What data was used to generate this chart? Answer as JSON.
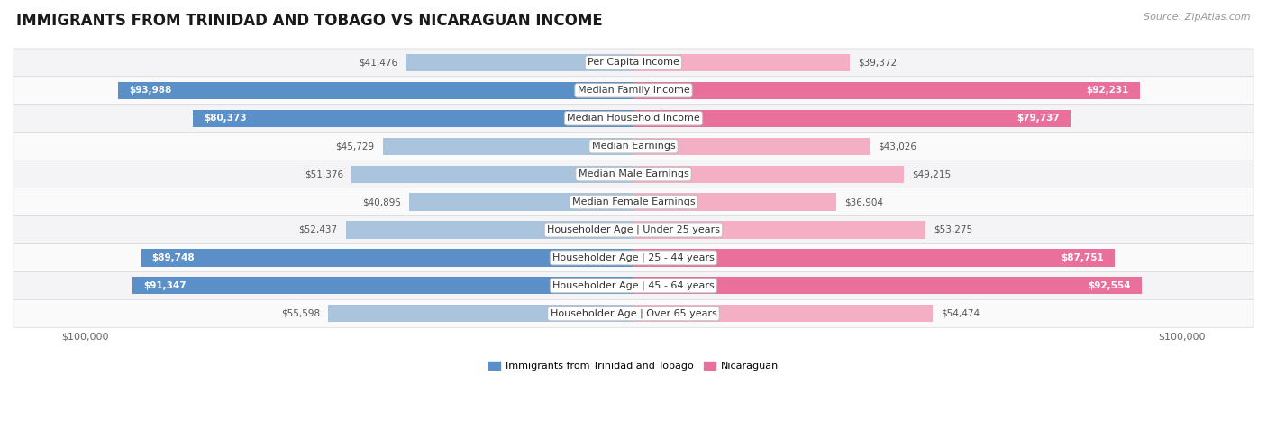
{
  "title": "IMMIGRANTS FROM TRINIDAD AND TOBAGO VS NICARAGUAN INCOME",
  "source": "Source: ZipAtlas.com",
  "categories": [
    "Per Capita Income",
    "Median Family Income",
    "Median Household Income",
    "Median Earnings",
    "Median Male Earnings",
    "Median Female Earnings",
    "Householder Age | Under 25 years",
    "Householder Age | 25 - 44 years",
    "Householder Age | 45 - 64 years",
    "Householder Age | Over 65 years"
  ],
  "trinidad_values": [
    41476,
    93988,
    80373,
    45729,
    51376,
    40895,
    52437,
    89748,
    91347,
    55598
  ],
  "nicaraguan_values": [
    39372,
    92231,
    79737,
    43026,
    49215,
    36904,
    53275,
    87751,
    92554,
    54474
  ],
  "max_value": 100000,
  "trinidad_color": "#aac4de",
  "nicaraguan_color": "#f4afc5",
  "trinidad_dark_color": "#5b8fc8",
  "nicaraguan_dark_color": "#e8709a",
  "label_trinidad": "Immigrants from Trinidad and Tobago",
  "label_nicaraguan": "Nicaraguan",
  "bg_color": "#ffffff",
  "row_bg_light": "#f4f4f6",
  "row_bg_white": "#fafafa",
  "title_fontsize": 12,
  "source_fontsize": 8,
  "bar_height": 0.62,
  "axis_label_fontsize": 8,
  "value_fontsize": 7.5,
  "cat_fontsize": 8
}
